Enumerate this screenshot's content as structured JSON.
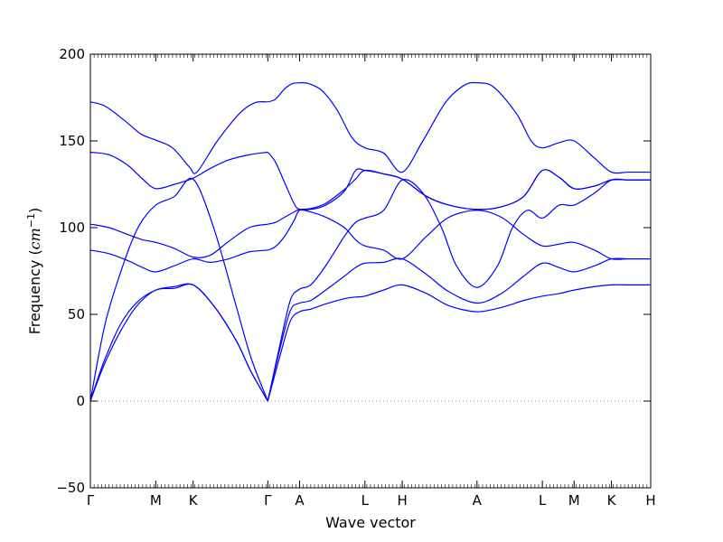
{
  "chart_data": {
    "type": "line",
    "title": "",
    "xlabel": "Wave vector",
    "ylabel_prefix": "Frequency (",
    "ylabel_unit": "cm",
    "ylabel_exp": "−1",
    "ylabel_suffix": ")",
    "ylim": [
      -50,
      200
    ],
    "yticks": [
      "−50",
      "0",
      "50",
      "100",
      "150",
      "200"
    ],
    "ytick_values": [
      -50,
      0,
      50,
      100,
      150,
      200
    ],
    "xlim": [
      0,
      15
    ],
    "high_symmetry_points": [
      {
        "label": "Γ",
        "x": 0
      },
      {
        "label": "M",
        "x": 1.75
      },
      {
        "label": "K",
        "x": 2.75
      },
      {
        "label": "Γ",
        "x": 4.75
      },
      {
        "label": "A",
        "x": 5.6
      },
      {
        "label": "L",
        "x": 7.35
      },
      {
        "label": "H",
        "x": 8.35
      },
      {
        "label": "A",
        "x": 10.35
      },
      {
        "label": "L",
        "x": 12.1
      },
      {
        "label": "M",
        "x": 12.95
      },
      {
        "label": "K",
        "x": 13.95
      },
      {
        "label": "H",
        "x": 15
      }
    ],
    "zero_line": {
      "y": 0,
      "style": "dotted"
    },
    "grid": false,
    "line_color": "#0000ff",
    "series": [
      {
        "x": [
          0,
          0.35,
          0.8,
          1.25,
          1.75,
          2.25,
          2.75,
          3.3,
          3.9,
          4.3,
          4.75
        ],
        "values": [
          0,
          20,
          40,
          55,
          64,
          65,
          67,
          55,
          35,
          17,
          0
        ]
      },
      {
        "x": [
          0,
          0.35,
          0.8,
          1.25,
          1.75,
          2.25,
          2.75,
          3.3,
          3.9,
          4.3,
          4.75
        ],
        "values": [
          0,
          22,
          44,
          57,
          64,
          66,
          67,
          55,
          35,
          17,
          0
        ]
      },
      {
        "x": [
          0,
          0.4,
          0.9,
          1.3,
          1.75,
          2.25,
          2.75,
          3.3,
          3.9,
          4.3,
          4.75
        ],
        "values": [
          0,
          45,
          80,
          101,
          113,
          118,
          128,
          100,
          55,
          25,
          0
        ]
      },
      {
        "x": [
          0,
          0.5,
          1.0,
          1.4,
          1.75,
          2.25,
          2.75,
          3.2,
          3.7,
          4.25,
          4.75
        ],
        "values": [
          87,
          85,
          81,
          77,
          74.5,
          78,
          82,
          80,
          82,
          86,
          87
        ]
      },
      {
        "x": [
          0,
          0.5,
          1.0,
          1.4,
          1.75,
          2.25,
          2.75,
          3.2,
          3.7,
          4.25,
          4.75
        ],
        "values": [
          102,
          100,
          96,
          93,
          91.5,
          88,
          83,
          84,
          92,
          100,
          102
        ]
      },
      {
        "x": [
          0,
          0.5,
          1.0,
          1.4,
          1.75,
          2.25,
          2.75,
          3.2,
          3.7,
          4.25,
          4.75
        ],
        "values": [
          143.5,
          142,
          136,
          128,
          122.5,
          125,
          128.5,
          134,
          139,
          142,
          143.5
        ]
      },
      {
        "x": [
          0,
          0.4,
          0.9,
          1.35,
          1.75,
          2.2,
          2.65,
          2.85,
          3.4,
          4.0,
          4.4,
          4.75
        ],
        "values": [
          172.5,
          170,
          162,
          154,
          150.5,
          146,
          135,
          132,
          150,
          166,
          172,
          172.5
        ]
      },
      {
        "x": [
          4.75,
          5.05,
          5.35,
          5.6,
          5.9,
          6.3,
          6.8,
          7.1,
          7.35,
          7.85,
          8.35,
          9.0,
          9.6,
          10.35,
          11.0,
          11.6,
          12.1,
          12.55,
          12.95,
          13.5,
          13.95,
          14.4,
          15
        ],
        "values": [
          0,
          24,
          46,
          51.5,
          53,
          56,
          59,
          60,
          60.5,
          64,
          67,
          62,
          55,
          51.5,
          54,
          58,
          60.5,
          62,
          64,
          66,
          67,
          67,
          67
        ]
      },
      {
        "x": [
          4.75,
          5.05,
          5.35,
          5.6,
          5.9,
          6.3,
          6.8,
          7.1,
          7.35,
          7.85,
          8.35,
          9.0,
          9.6,
          10.35,
          11.0,
          11.6,
          12.1,
          12.55,
          12.95,
          13.5,
          13.95,
          14.4,
          15
        ],
        "values": [
          0,
          28,
          52,
          56.5,
          58,
          64,
          72,
          77,
          79.5,
          80,
          82,
          73,
          63,
          56.5,
          62,
          72,
          79.5,
          77,
          74.5,
          78,
          82,
          82,
          82
        ]
      },
      {
        "x": [
          4.75,
          5.05,
          5.35,
          5.6,
          5.9,
          6.3,
          6.8,
          7.1,
          7.35,
          7.85,
          8.35,
          8.9,
          9.4,
          9.8,
          10.35,
          10.9,
          11.3,
          11.7,
          12.1,
          12.55,
          12.95,
          13.5,
          13.95,
          14.4,
          15
        ],
        "values": [
          0,
          30,
          58,
          64.5,
          67,
          78,
          95,
          103,
          105.5,
          110,
          127.5,
          120,
          100,
          78,
          65.5,
          78,
          100,
          110,
          105.5,
          113,
          113,
          120,
          127.5,
          127.5,
          127.5
        ]
      },
      {
        "x": [
          4.75,
          4.95,
          5.2,
          5.45,
          5.6,
          5.9,
          6.3,
          6.8,
          7.1,
          7.35,
          7.85,
          8.35,
          9.0,
          9.6,
          10.35,
          11.0,
          11.6,
          12.1,
          12.55,
          12.95,
          13.5,
          13.95,
          14.4,
          15
        ],
        "values": [
          87,
          89,
          95,
          104,
          110,
          109,
          106,
          100,
          93,
          89.5,
          87,
          82,
          95,
          106,
          110,
          106,
          96,
          89.5,
          90.5,
          91.5,
          87,
          82,
          82,
          82
        ]
      },
      {
        "x": [
          4.75,
          4.95,
          5.2,
          5.45,
          5.6,
          5.9,
          6.3,
          6.8,
          7.1,
          7.35,
          7.85,
          8.35,
          9.0,
          9.6,
          10.35,
          11.0,
          11.6,
          12.1,
          12.55,
          12.95,
          13.5,
          13.95,
          14.4,
          15
        ],
        "values": [
          102,
          103,
          106,
          109,
          110.5,
          111,
          114,
          122,
          128,
          133,
          131,
          128,
          118,
          113,
          110.5,
          112,
          118,
          133,
          129,
          122.5,
          124,
          127.5,
          127.5,
          127.5
        ]
      },
      {
        "x": [
          4.75,
          4.95,
          5.2,
          5.45,
          5.6,
          5.9,
          6.3,
          6.8,
          7.1,
          7.35,
          7.85,
          8.35,
          9.0,
          9.6,
          10.35,
          11.0,
          11.6,
          12.1,
          12.55,
          12.95,
          13.5,
          13.95,
          14.4,
          15
        ],
        "values": [
          143.5,
          138,
          126,
          114,
          110.5,
          110.5,
          113,
          121,
          133,
          133,
          131,
          128,
          118,
          113,
          110.5,
          112,
          118,
          133,
          129,
          122.5,
          124,
          127.5,
          127.5,
          127.5
        ]
      },
      {
        "x": [
          4.75,
          4.95,
          5.2,
          5.4,
          5.6,
          5.85,
          6.2,
          6.6,
          7.0,
          7.35,
          7.85,
          8.35,
          8.9,
          9.5,
          10.0,
          10.35,
          10.8,
          11.4,
          11.8,
          12.1,
          12.55,
          12.95,
          13.5,
          13.95,
          14.4,
          15
        ],
        "values": [
          172.5,
          174,
          180,
          183,
          183.5,
          183,
          179,
          168,
          152,
          146,
          143,
          132,
          150,
          172,
          182,
          183.5,
          181,
          166,
          150,
          146,
          149,
          150,
          140,
          132,
          132,
          132
        ]
      }
    ]
  }
}
